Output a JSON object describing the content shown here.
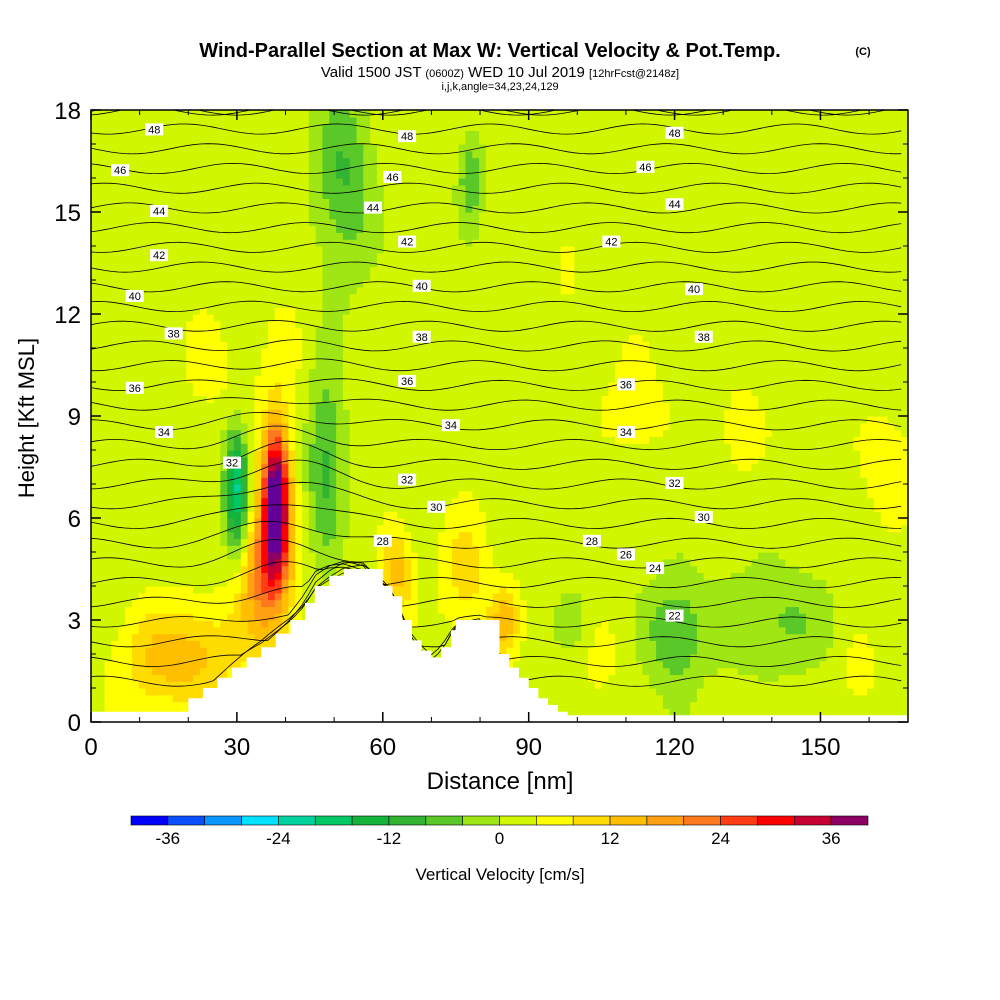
{
  "header": {
    "title": "Wind-Parallel Section at Max W: Vertical Velocity & Pot.Temp.",
    "copyright": "(C)",
    "subtitle_main": "Valid 1500 JST",
    "subtitle_utc": "(0600Z)",
    "subtitle_date": "WED 10 Jul 2019",
    "subtitle_fcst": "[12hrFcst@2148z]",
    "indices": "i,j,k,angle=34,23,24,129"
  },
  "chart_data": {
    "type": "heatmap",
    "xlabel": "Distance [nm]",
    "ylabel": "Height [Kft MSL]",
    "xlim": [
      0,
      168
    ],
    "ylim": [
      0,
      18
    ],
    "x_ticks": [
      0,
      30,
      60,
      90,
      120,
      150
    ],
    "y_ticks": [
      0,
      3,
      6,
      9,
      12,
      15,
      18
    ],
    "colorbar": {
      "label": "Vertical Velocity [cm/s]",
      "ticks": [
        -36,
        -24,
        -12,
        0,
        12,
        24,
        36
      ],
      "bins": [
        -40,
        -36,
        -32,
        -28,
        -24,
        -20,
        -16,
        -12,
        -8,
        -4,
        0,
        4,
        8,
        12,
        16,
        20,
        24,
        28,
        32,
        36,
        40
      ],
      "colors": [
        "#0000ff",
        "#0a50ff",
        "#0a96ff",
        "#00e0ff",
        "#00d2a0",
        "#00c864",
        "#14b43c",
        "#32b432",
        "#5ac828",
        "#a0e614",
        "#d2f500",
        "#ffff00",
        "#ffdc00",
        "#ffbe00",
        "#ffa014",
        "#ff781e",
        "#ff3c14",
        "#ff0000",
        "#c80032",
        "#8c0064",
        "#640096"
      ]
    },
    "background_w": 2,
    "w_features": [
      {
        "x": 38,
        "y": 6.6,
        "sx": 2.6,
        "sy": 2.1,
        "w": 40
      },
      {
        "x": 36,
        "y": 4.4,
        "sx": 5.5,
        "sy": 2.2,
        "w": 20
      },
      {
        "x": 22,
        "y": 2.0,
        "sx": 9,
        "sy": 1.5,
        "w": 10
      },
      {
        "x": 12,
        "y": 1.8,
        "sx": 8,
        "sy": 1.6,
        "w": 7
      },
      {
        "x": 30,
        "y": 6.8,
        "sx": 2.5,
        "sy": 1.8,
        "w": -24
      },
      {
        "x": 48,
        "y": 7.8,
        "sx": 4,
        "sy": 2.8,
        "w": -12
      },
      {
        "x": 52,
        "y": 16.0,
        "sx": 6,
        "sy": 2.8,
        "w": -10
      },
      {
        "x": 78,
        "y": 16.0,
        "sx": 2.5,
        "sy": 1.3,
        "w": -10
      },
      {
        "x": 77,
        "y": 4.4,
        "sx": 5,
        "sy": 1.8,
        "w": 8
      },
      {
        "x": 63,
        "y": 4.4,
        "sx": 3,
        "sy": 1.3,
        "w": 12
      },
      {
        "x": 85,
        "y": 3.0,
        "sx": 3,
        "sy": 1.0,
        "w": 12
      },
      {
        "x": 40,
        "y": 9.5,
        "sx": 8,
        "sy": 3,
        "w": 3
      },
      {
        "x": 103,
        "y": 2.0,
        "sx": 6,
        "sy": 1.5,
        "w": 4
      },
      {
        "x": 120,
        "y": 2.6,
        "sx": 6,
        "sy": 1.6,
        "w": -10
      },
      {
        "x": 100,
        "y": 2.8,
        "sx": 4,
        "sy": 1.2,
        "w": -6
      },
      {
        "x": 140,
        "y": 3.0,
        "sx": 12,
        "sy": 1.5,
        "w": -7
      },
      {
        "x": 112,
        "y": 9.3,
        "sx": 6,
        "sy": 1.6,
        "w": 5
      },
      {
        "x": 133,
        "y": 8.6,
        "sx": 5,
        "sy": 1.5,
        "w": 4
      },
      {
        "x": 164,
        "y": 7.6,
        "sx": 5,
        "sy": 1.5,
        "w": 6
      },
      {
        "x": 24,
        "y": 10.5,
        "sx": 5,
        "sy": 1.5,
        "w": 4
      },
      {
        "x": 158,
        "y": 1.5,
        "sx": 3,
        "sy": 1.0,
        "w": 5
      },
      {
        "x": 98,
        "y": 13.4,
        "sx": 1,
        "sy": 0.9,
        "w": 6
      }
    ],
    "terrain_x": [
      0,
      16,
      20,
      23,
      26,
      29,
      32,
      35,
      38,
      41,
      44,
      46,
      49,
      52,
      56,
      60,
      62,
      64,
      66,
      68,
      70,
      72,
      74,
      75,
      78,
      80,
      84,
      86,
      88,
      90,
      92,
      94,
      96,
      98,
      168
    ],
    "terrain_ft": [
      0.3,
      0.3,
      0.7,
      1.0,
      1.3,
      1.6,
      1.9,
      2.2,
      2.6,
      3.0,
      3.5,
      4.0,
      4.3,
      4.5,
      4.5,
      4.0,
      3.7,
      3.0,
      2.4,
      2.1,
      1.9,
      2.2,
      2.7,
      3.0,
      3.0,
      3.0,
      2.0,
      1.6,
      1.3,
      1.0,
      0.7,
      0.5,
      0.3,
      0.2,
      0.2
    ],
    "theta_labels": [
      {
        "text": "48",
        "x": 13,
        "y": 17.4
      },
      {
        "text": "48",
        "x": 65,
        "y": 17.2
      },
      {
        "text": "48",
        "x": 120,
        "y": 17.3
      },
      {
        "text": "46",
        "x": 6,
        "y": 16.2
      },
      {
        "text": "46",
        "x": 62,
        "y": 16.0
      },
      {
        "text": "46",
        "x": 114,
        "y": 16.3
      },
      {
        "text": "44",
        "x": 14,
        "y": 15.0
      },
      {
        "text": "44",
        "x": 58,
        "y": 15.1
      },
      {
        "text": "44",
        "x": 120,
        "y": 15.2
      },
      {
        "text": "42",
        "x": 14,
        "y": 13.7
      },
      {
        "text": "42",
        "x": 65,
        "y": 14.1
      },
      {
        "text": "42",
        "x": 107,
        "y": 14.1
      },
      {
        "text": "40",
        "x": 9,
        "y": 12.5
      },
      {
        "text": "40",
        "x": 68,
        "y": 12.8
      },
      {
        "text": "40",
        "x": 124,
        "y": 12.7
      },
      {
        "text": "38",
        "x": 17,
        "y": 11.4
      },
      {
        "text": "38",
        "x": 68,
        "y": 11.3
      },
      {
        "text": "38",
        "x": 126,
        "y": 11.3
      },
      {
        "text": "36",
        "x": 9,
        "y": 9.8
      },
      {
        "text": "36",
        "x": 65,
        "y": 10.0
      },
      {
        "text": "36",
        "x": 110,
        "y": 9.9
      },
      {
        "text": "34",
        "x": 15,
        "y": 8.5
      },
      {
        "text": "34",
        "x": 74,
        "y": 8.7
      },
      {
        "text": "34",
        "x": 110,
        "y": 8.5
      },
      {
        "text": "32",
        "x": 29,
        "y": 7.6
      },
      {
        "text": "32",
        "x": 65,
        "y": 7.1
      },
      {
        "text": "32",
        "x": 120,
        "y": 7.0
      },
      {
        "text": "30",
        "x": 71,
        "y": 6.3
      },
      {
        "text": "30",
        "x": 126,
        "y": 6.0
      },
      {
        "text": "28",
        "x": 60,
        "y": 5.3
      },
      {
        "text": "28",
        "x": 103,
        "y": 5.3
      },
      {
        "text": "26",
        "x": 110,
        "y": 4.9
      },
      {
        "text": "24",
        "x": 116,
        "y": 4.5
      },
      {
        "text": "22",
        "x": 120,
        "y": 3.1
      }
    ]
  }
}
